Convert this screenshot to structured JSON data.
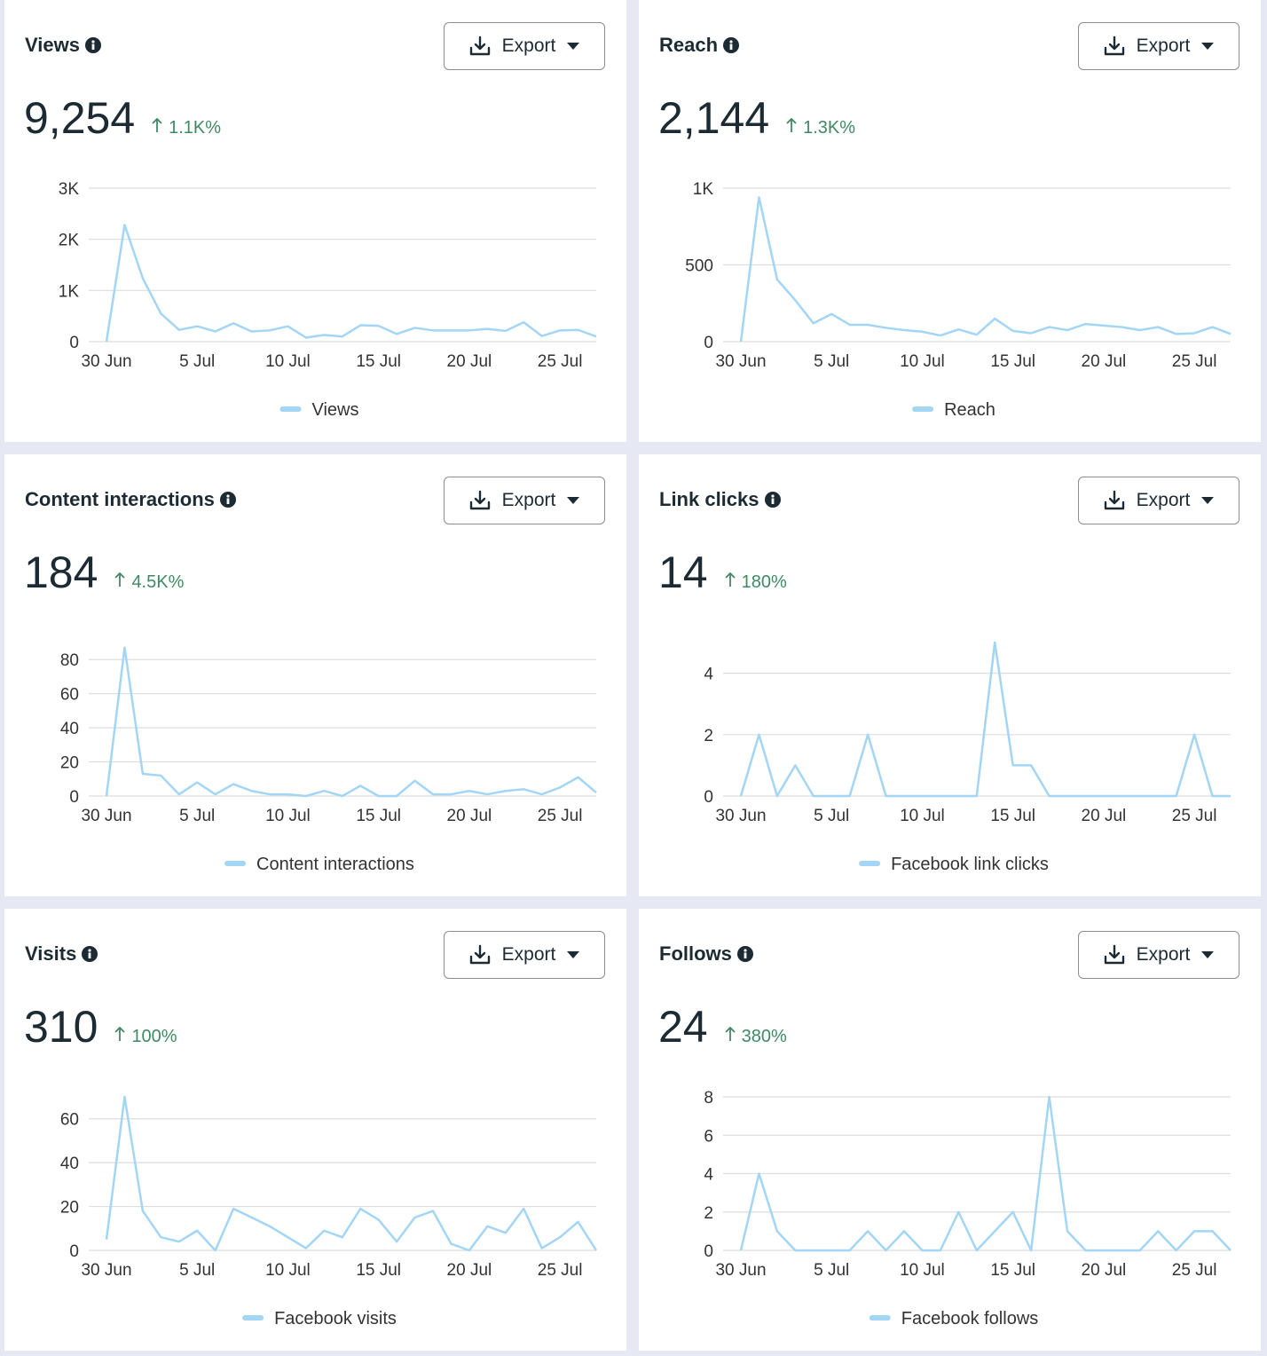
{
  "cards": [
    {
      "title": "Views",
      "total": "9,254",
      "change": "1.1K%",
      "button": "Export"
    },
    {
      "title": "Reach",
      "total": "2,144",
      "change": "1.3K%",
      "button": "Export"
    },
    {
      "title": "Content interactions",
      "total": "184",
      "change": "4.5K%",
      "button": "Export"
    },
    {
      "title": "Link clicks",
      "total": "14",
      "change": "180%",
      "button": "Export"
    },
    {
      "title": "Visits",
      "total": "310",
      "change": "100%",
      "button": "Export"
    },
    {
      "title": "Follows",
      "total": "24",
      "change": "380%",
      "button": "Export"
    }
  ],
  "chart_data": [
    {
      "type": "line",
      "categories": [
        "30 Jun",
        null,
        null,
        null,
        null,
        "5 Jul",
        null,
        null,
        null,
        null,
        "10 Jul",
        null,
        null,
        null,
        null,
        "15 Jul",
        null,
        null,
        null,
        null,
        "20 Jul",
        null,
        null,
        null,
        null,
        "25 Jul",
        null,
        null
      ],
      "series": [
        {
          "name": "Views",
          "color": "#a3d5f5",
          "values": [
            0,
            2280,
            1240,
            550,
            230,
            300,
            200,
            360,
            200,
            220,
            300,
            80,
            130,
            100,
            320,
            310,
            150,
            270,
            220,
            220,
            220,
            250,
            210,
            380,
            110,
            220,
            230,
            100
          ]
        }
      ],
      "ylim": [
        0,
        3000
      ],
      "yticks": [
        0,
        {
          "value": 1000,
          "label": "1K"
        },
        {
          "value": 2000,
          "label": "2K"
        },
        {
          "value": 3000,
          "label": "3K"
        }
      ],
      "grid": true
    },
    {
      "type": "line",
      "categories": [
        "30 Jun",
        null,
        null,
        null,
        null,
        "5 Jul",
        null,
        null,
        null,
        null,
        "10 Jul",
        null,
        null,
        null,
        null,
        "15 Jul",
        null,
        null,
        null,
        null,
        "20 Jul",
        null,
        null,
        null,
        null,
        "25 Jul",
        null,
        null
      ],
      "series": [
        {
          "name": "Reach",
          "color": "#a3d5f5",
          "values": [
            0,
            940,
            405,
            270,
            120,
            180,
            110,
            110,
            90,
            75,
            65,
            40,
            80,
            45,
            150,
            70,
            55,
            95,
            75,
            115,
            105,
            95,
            75,
            95,
            50,
            55,
            95,
            50
          ]
        }
      ],
      "ylim": [
        0,
        1000
      ],
      "yticks": [
        0,
        500,
        {
          "value": 1000,
          "label": "1K"
        }
      ],
      "grid": true
    },
    {
      "type": "line",
      "categories": [
        "30 Jun",
        null,
        null,
        null,
        null,
        "5 Jul",
        null,
        null,
        null,
        null,
        "10 Jul",
        null,
        null,
        null,
        null,
        "15 Jul",
        null,
        null,
        null,
        null,
        "20 Jul",
        null,
        null,
        null,
        null,
        "25 Jul",
        null,
        null
      ],
      "series": [
        {
          "name": "Content interactions",
          "color": "#a3d5f5",
          "values": [
            0,
            87,
            13,
            12,
            1,
            8,
            1,
            7,
            3,
            1,
            1,
            0,
            3,
            0,
            6,
            0,
            0,
            9,
            1,
            1,
            3,
            1,
            3,
            4,
            1,
            5,
            11,
            2
          ]
        }
      ],
      "ylim": [
        0,
        90
      ],
      "yticks": [
        0,
        20,
        40,
        60,
        80
      ],
      "grid": true
    },
    {
      "type": "line",
      "categories": [
        "30 Jun",
        null,
        null,
        null,
        null,
        "5 Jul",
        null,
        null,
        null,
        null,
        "10 Jul",
        null,
        null,
        null,
        null,
        "15 Jul",
        null,
        null,
        null,
        null,
        "20 Jul",
        null,
        null,
        null,
        null,
        "25 Jul",
        null,
        null
      ],
      "series": [
        {
          "name": "Facebook link clicks",
          "color": "#a3d5f5",
          "values": [
            0,
            2,
            0,
            1,
            0,
            0,
            0,
            2,
            0,
            0,
            0,
            0,
            0,
            0,
            5,
            1,
            1,
            0,
            0,
            0,
            0,
            0,
            0,
            0,
            0,
            2,
            0,
            0
          ]
        }
      ],
      "ylim": [
        0,
        5
      ],
      "yticks": [
        0,
        2,
        4
      ],
      "grid": true
    },
    {
      "type": "line",
      "categories": [
        "30 Jun",
        null,
        null,
        null,
        null,
        "5 Jul",
        null,
        null,
        null,
        null,
        "10 Jul",
        null,
        null,
        null,
        null,
        "15 Jul",
        null,
        null,
        null,
        null,
        "20 Jul",
        null,
        null,
        null,
        null,
        "25 Jul",
        null,
        null
      ],
      "series": [
        {
          "name": "Facebook visits",
          "color": "#a3d5f5",
          "values": [
            5,
            70,
            18,
            6,
            4,
            9,
            0,
            19,
            15,
            11,
            6,
            1,
            9,
            6,
            19,
            14,
            4,
            15,
            18,
            3,
            0,
            11,
            8,
            19,
            1,
            6,
            13,
            0
          ]
        }
      ],
      "ylim": [
        0,
        70
      ],
      "yticks": [
        0,
        20,
        40,
        60
      ],
      "grid": true
    },
    {
      "type": "line",
      "categories": [
        "30 Jun",
        null,
        null,
        null,
        null,
        "5 Jul",
        null,
        null,
        null,
        null,
        "10 Jul",
        null,
        null,
        null,
        null,
        "15 Jul",
        null,
        null,
        null,
        null,
        "20 Jul",
        null,
        null,
        null,
        null,
        "25 Jul",
        null,
        null
      ],
      "series": [
        {
          "name": "Facebook follows",
          "color": "#a3d5f5",
          "values": [
            0,
            4,
            1,
            0,
            0,
            0,
            0,
            1,
            0,
            1,
            0,
            0,
            2,
            0,
            1,
            2,
            0,
            8,
            1,
            0,
            0,
            0,
            0,
            1,
            0,
            1,
            1,
            0
          ]
        }
      ],
      "ylim": [
        0,
        8
      ],
      "yticks": [
        0,
        2,
        4,
        6,
        8
      ],
      "grid": true
    }
  ]
}
